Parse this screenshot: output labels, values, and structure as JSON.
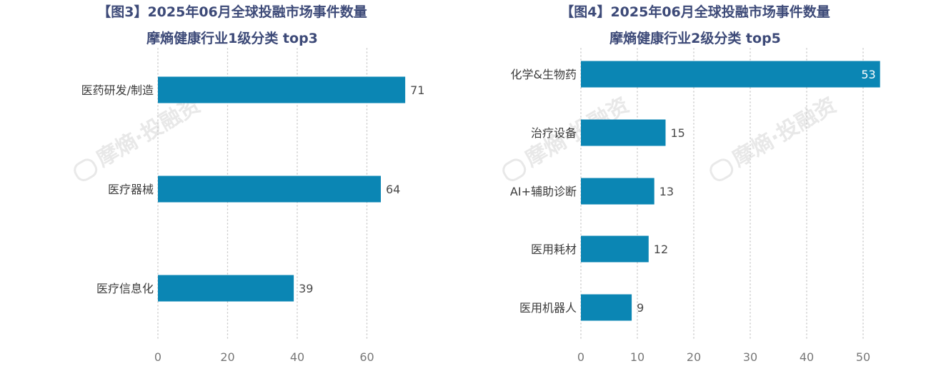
{
  "colors": {
    "bar": "#0b86b4",
    "title": "#3d4a78"
  },
  "watermark": {
    "text": "摩熵·投融资"
  },
  "chart_data": [
    {
      "type": "bar",
      "orientation": "horizontal",
      "title": "【图3】2025年06月全球投融市场事件数量",
      "subtitle": "摩熵健康行业1级分类 top3",
      "categories": [
        "医药研发/制造",
        "医疗器械",
        "医疗信息化"
      ],
      "values": [
        71,
        64,
        39
      ],
      "xlim": [
        0,
        75
      ],
      "xticks": [
        0,
        20,
        40,
        60
      ],
      "grid": true,
      "value_labels_inside": []
    },
    {
      "type": "bar",
      "orientation": "horizontal",
      "title": "【图4】2025年06月全球投融市场事件数量",
      "subtitle": "摩熵健康行业2级分类 top5",
      "categories": [
        "化学&生物药",
        "治疗设备",
        "AI+辅助诊断",
        "医用耗材",
        "医用机器人"
      ],
      "values": [
        53,
        15,
        13,
        12,
        9
      ],
      "xlim": [
        0,
        55
      ],
      "xticks": [
        0,
        10,
        20,
        30,
        40,
        50
      ],
      "grid": true,
      "value_labels_inside": [
        0
      ]
    }
  ]
}
